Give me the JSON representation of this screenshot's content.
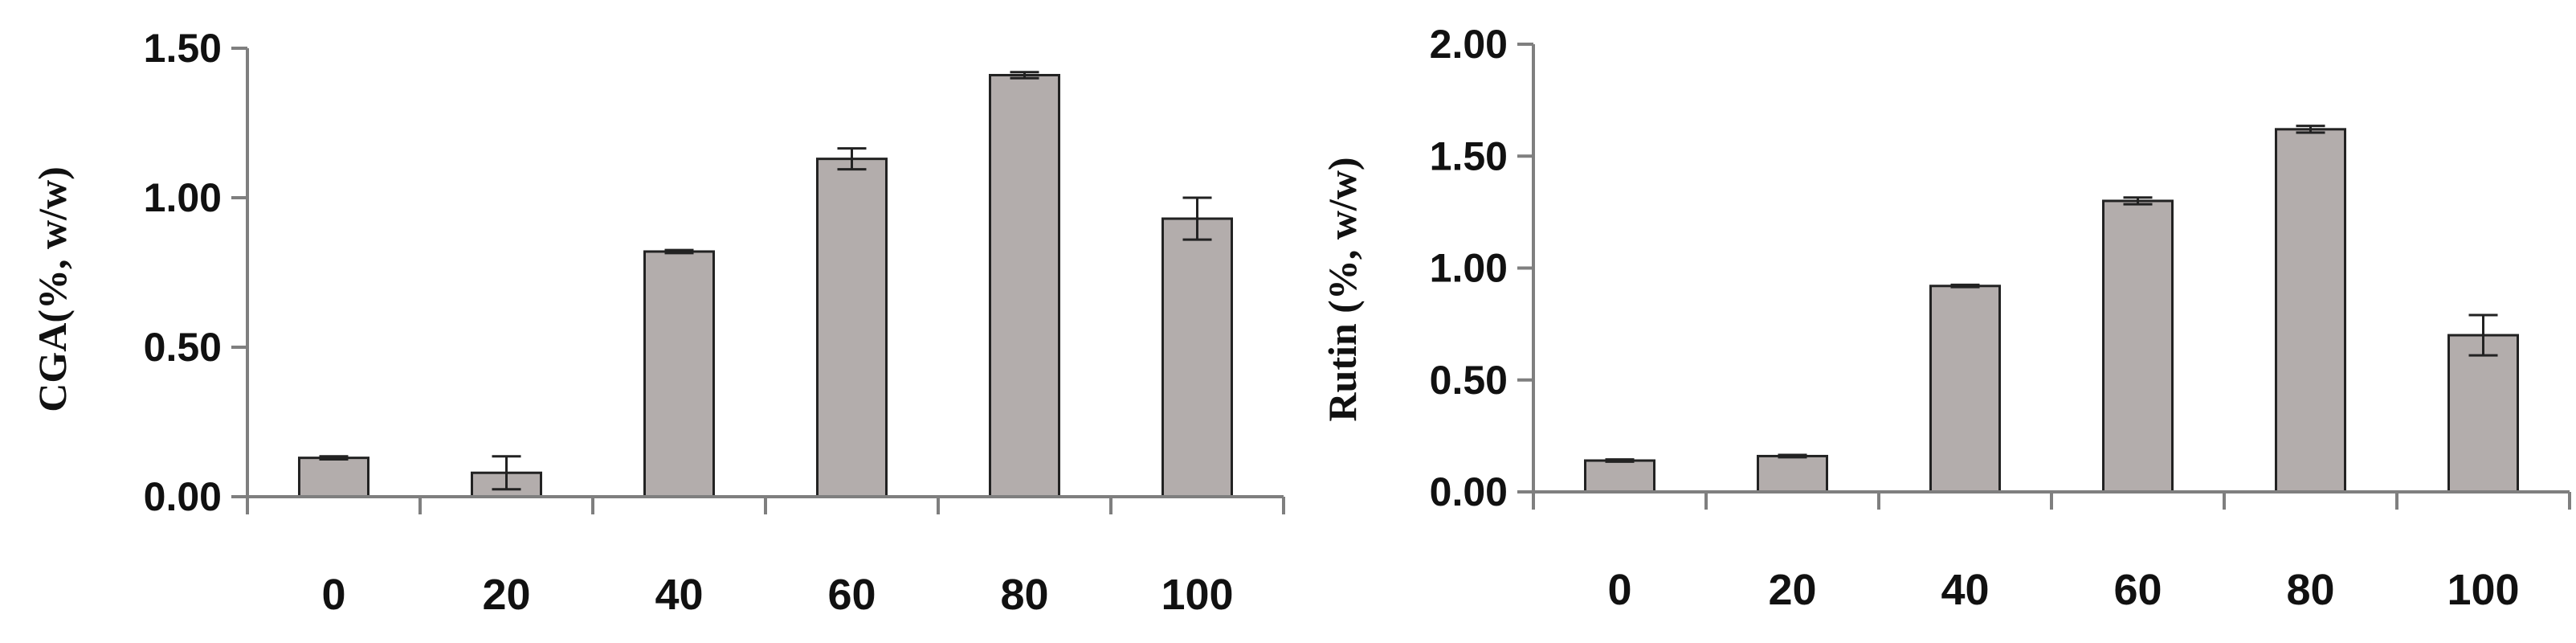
{
  "colors": {
    "bar_fill": "#b3adac",
    "bar_stroke": "#222222",
    "axis": "#7f7f7f",
    "error_bar": "#222222",
    "text": "#111111"
  },
  "chart_data": [
    {
      "type": "bar",
      "title": "",
      "xlabel": "",
      "ylabel": "CGA(%, w/w)",
      "categories": [
        "0",
        "20",
        "40",
        "60",
        "80",
        "100"
      ],
      "values": [
        0.13,
        0.08,
        0.82,
        1.13,
        1.41,
        0.93
      ],
      "errors": [
        0.005,
        0.055,
        0.005,
        0.035,
        0.01,
        0.07
      ],
      "ylim": [
        0,
        1.5
      ],
      "yticks": [
        "0.00",
        "0.50",
        "1.00",
        "1.50"
      ],
      "grid": false,
      "legend": "none"
    },
    {
      "type": "bar",
      "title": "",
      "xlabel": "",
      "ylabel": "Rutin (%, w/w)",
      "categories": [
        "0",
        "20",
        "40",
        "60",
        "80",
        "100"
      ],
      "values": [
        0.14,
        0.16,
        0.92,
        1.3,
        1.62,
        0.7
      ],
      "errors": [
        0.005,
        0.005,
        0.005,
        0.015,
        0.015,
        0.09
      ],
      "ylim": [
        0,
        2.0
      ],
      "yticks": [
        "0.00",
        "0.50",
        "1.00",
        "1.50",
        "2.00"
      ],
      "grid": false,
      "legend": "none"
    }
  ]
}
